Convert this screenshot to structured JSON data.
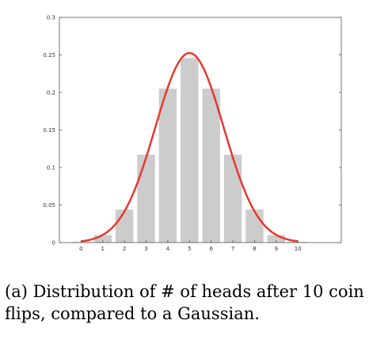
{
  "chart_data": {
    "type": "bar",
    "categories": [
      "0",
      "1",
      "2",
      "3",
      "4",
      "5",
      "6",
      "7",
      "8",
      "9",
      "10"
    ],
    "values": [
      0.001,
      0.01,
      0.044,
      0.117,
      0.205,
      0.246,
      0.205,
      0.117,
      0.044,
      0.01,
      0.001
    ],
    "yticks": [
      "0",
      "0.05",
      "0.1",
      "0.15",
      "0.2",
      "0.25",
      "0.3"
    ],
    "ylim": [
      0,
      0.3
    ],
    "xlim": [
      -1,
      12
    ],
    "grid": false,
    "overlay": {
      "type": "line",
      "kind": "gaussian",
      "mean": 5,
      "sd": 1.58,
      "x_range": [
        0,
        10
      ]
    },
    "colors": {
      "bars": "#cccccc",
      "curve": "#e8382e",
      "axes": "#555555"
    }
  },
  "caption": "(a) Distribution of # of heads after 10 coin flips, compared to a Gaussian."
}
